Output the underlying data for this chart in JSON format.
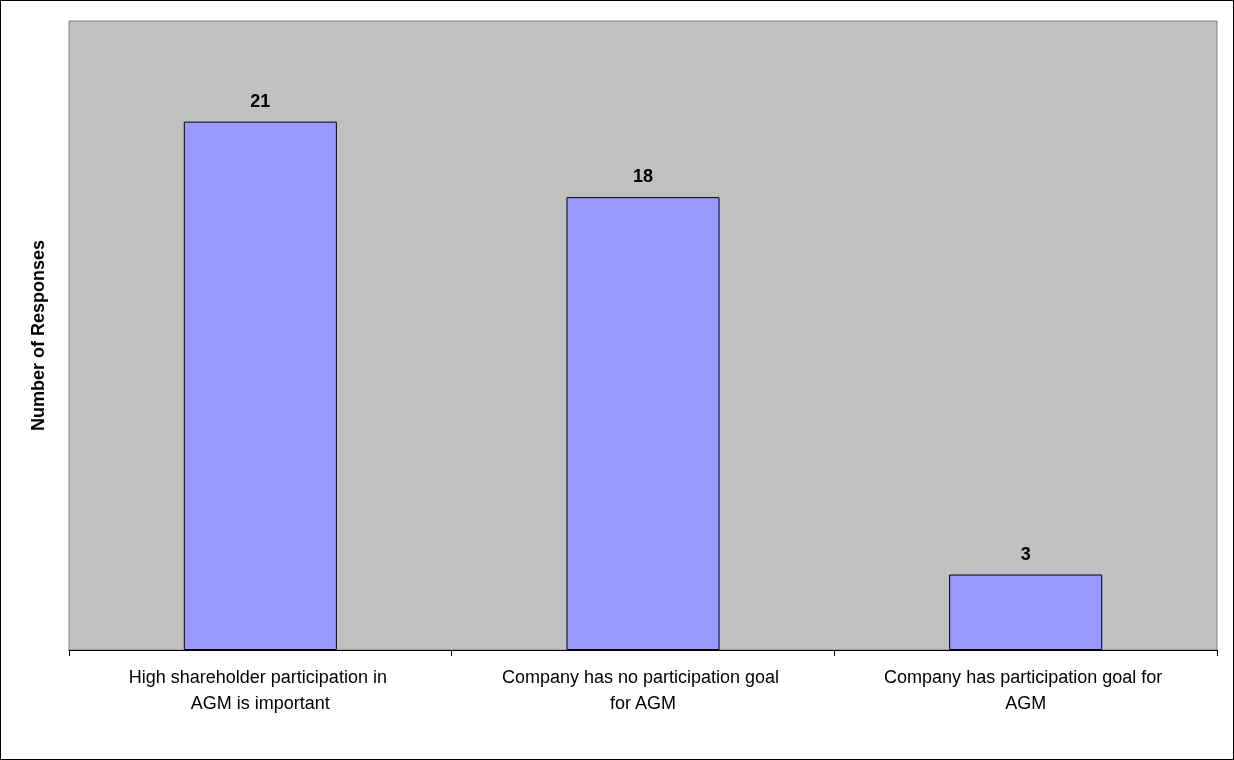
{
  "chart_data": {
    "type": "bar",
    "ylabel": "Number of Responses",
    "categories": [
      "High shareholder participation in AGM is important",
      "Company has no participation goal for AGM",
      "Company has participation goal for AGM"
    ],
    "values": [
      21,
      18,
      3
    ],
    "color": "#9999ff",
    "ylim": [
      0,
      25
    ],
    "data_labels": true,
    "grid": false
  }
}
